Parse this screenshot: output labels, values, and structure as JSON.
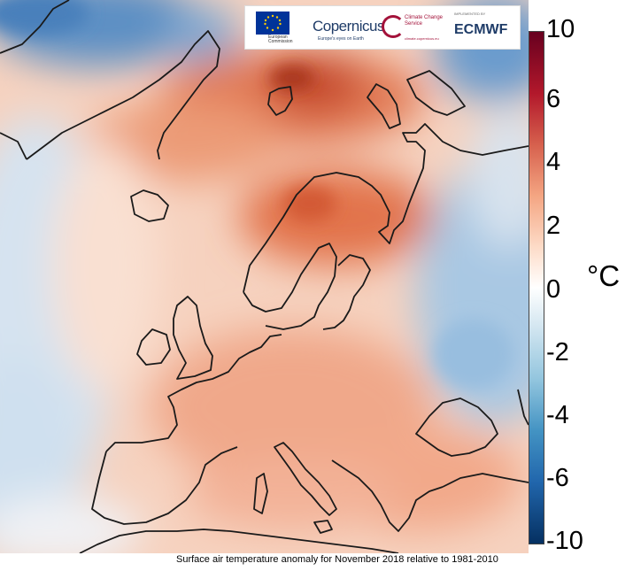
{
  "caption": "Surface air temperature anomaly for November 2018 relative to 1981-2010",
  "colorbar": {
    "unit": "°C",
    "ticks": [
      "10",
      "6",
      "4",
      "2",
      "0",
      "-2",
      "-4",
      "-6",
      "-10"
    ],
    "min": -10,
    "max": 10,
    "warm_color": "#b2182b",
    "neutral_color": "#ffffff",
    "cold_color": "#2166ac"
  },
  "logos": {
    "eu": {
      "text": "European Commission",
      "icon": "eu-flag-icon"
    },
    "copernicus": {
      "name": "Copernicus",
      "tagline": "Europe's eyes on Earth",
      "icon": "copernicus-logo-icon"
    },
    "c3s": {
      "name": "Climate Change Service",
      "sub": "climate.copernicus.eu",
      "icon": "c3s-ring-icon"
    },
    "ecmwf": {
      "implemented_by": "IMPLEMENTED BY",
      "name": "ECMWF",
      "icon": "ecmwf-logo-icon"
    }
  },
  "map": {
    "region": "Europe and North Atlantic",
    "variable": "surface air temperature anomaly",
    "land_outline_color": "#1a1a1a"
  }
}
